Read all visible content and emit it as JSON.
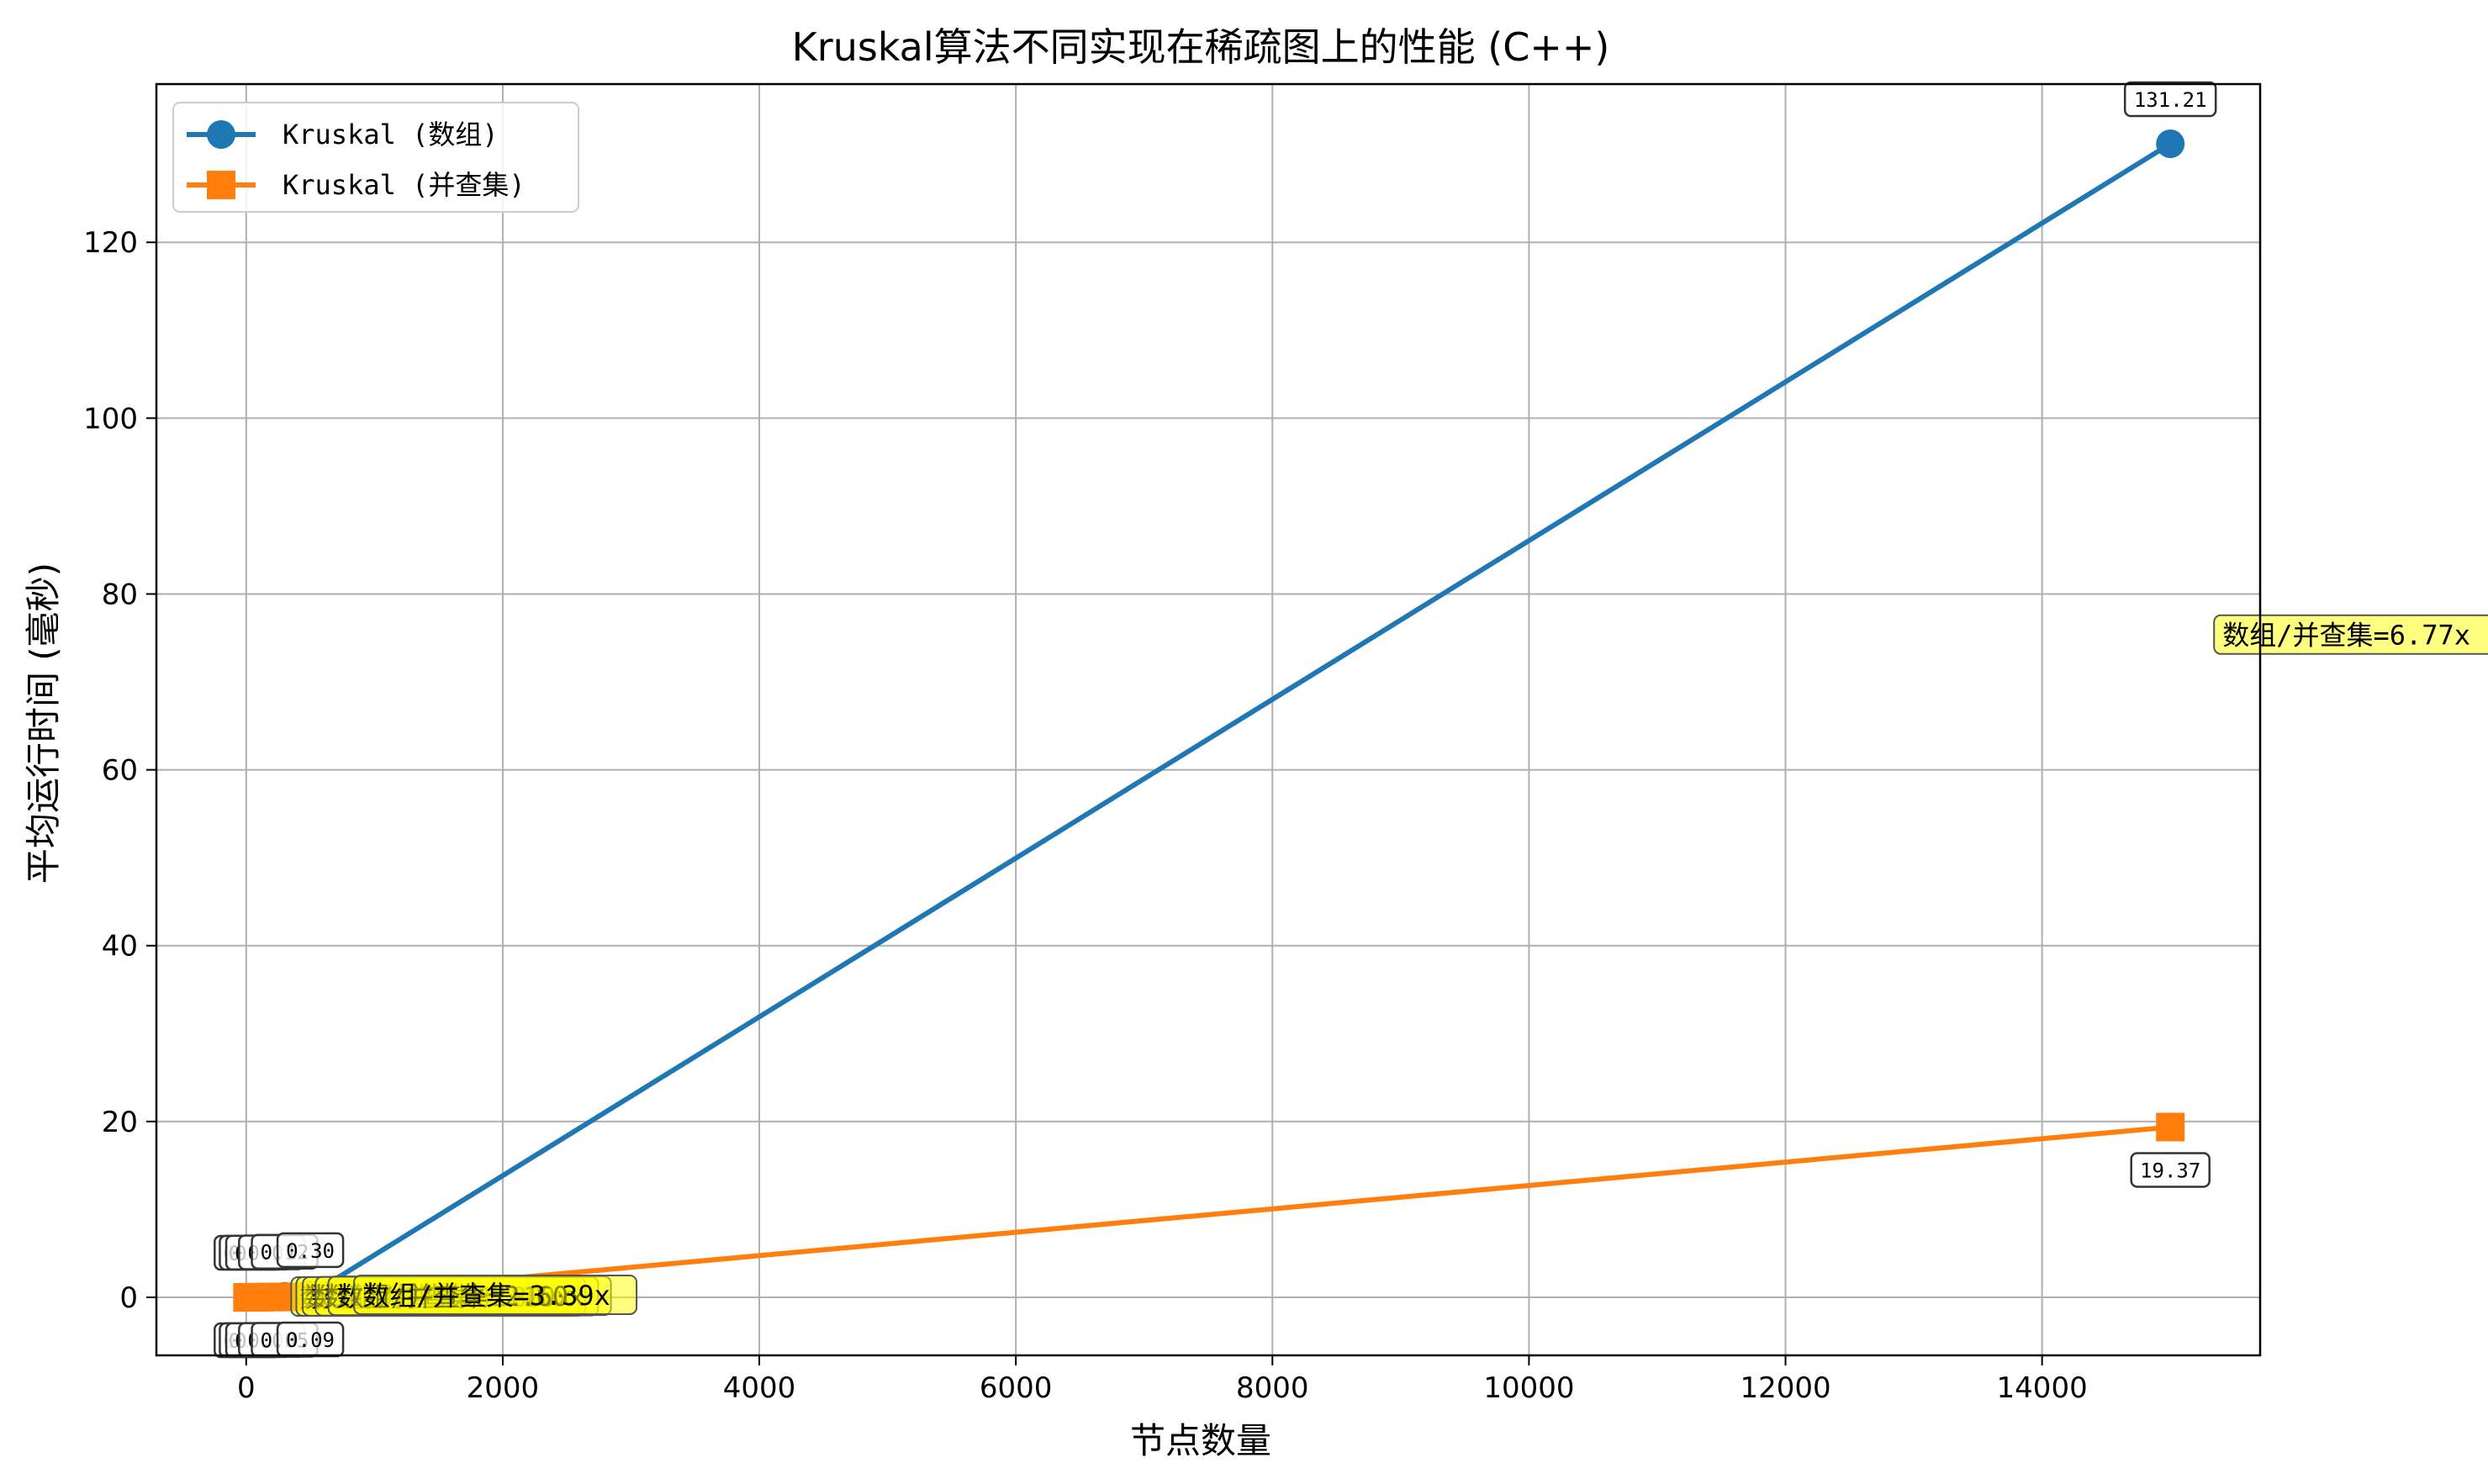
{
  "chart_data": {
    "type": "line",
    "title": "Kruskal算法不同实现在稀疏图上的性能 (C++)",
    "xlabel": "节点数量",
    "ylabel": "平均运行时间 (毫秒)",
    "xlim": [
      -700,
      15700
    ],
    "ylim": [
      -6.6,
      138
    ],
    "x_ticks": [
      0,
      2000,
      4000,
      6000,
      8000,
      10000,
      12000,
      14000
    ],
    "y_ticks": [
      0,
      20,
      40,
      60,
      80,
      100,
      120
    ],
    "grid": true,
    "legend_position": "top-left",
    "x": [
      10,
      50,
      100,
      200,
      300,
      500,
      15000
    ],
    "series": [
      {
        "name": "Kruskal (数组)",
        "marker": "circle",
        "color": "#1f77b4",
        "values": [
          0.0,
          0.01,
          0.02,
          0.05,
          0.12,
          0.3,
          131.21
        ],
        "labels": [
          "0.00",
          "0.01",
          "0.02",
          "0.05",
          "0.12",
          "0.30",
          "131.21"
        ]
      },
      {
        "name": "Kruskal (并查集)",
        "marker": "square",
        "color": "#ff7f0e",
        "values": [
          0.0,
          0.01,
          0.01,
          0.03,
          0.05,
          0.09,
          19.37
        ],
        "labels": [
          "0.00",
          "0.01",
          "0.01",
          "0.03",
          "0.05",
          "0.09",
          "19.37"
        ]
      }
    ],
    "ratio_annotations": [
      "数组/并查集=1.00x",
      "数组/并查集=1.50x",
      "数组/并查集=1.80x",
      "数组/并查集=2.10x",
      "数组/并查集=2.60x",
      "数组/并查集=3.39x",
      "数组/并查集=6.77x"
    ],
    "annotation_box_color": "#ffff00"
  }
}
